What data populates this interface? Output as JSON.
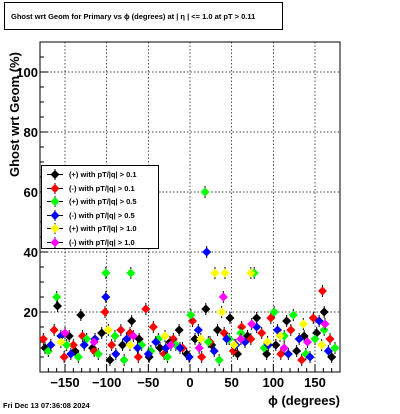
{
  "chart_data": {
    "type": "scatter",
    "title": "Ghost wrt Geom for Primary vs ϕ (degrees) at | η | <= 1.0 at pT > 0.11",
    "xlabel": "ϕ (degrees)",
    "ylabel": "Ghost wrt Geom (%)",
    "xlim": [
      -180,
      180
    ],
    "ylim": [
      0,
      110
    ],
    "xticks": [
      -150,
      -100,
      -50,
      0,
      50,
      100,
      150
    ],
    "yticks": [
      20,
      40,
      60,
      80,
      100
    ],
    "grid": true,
    "legend_position": "middle-left",
    "footer": "Fri Dec 13 07:36:08 2024",
    "series": [
      {
        "name": "(+) with pT/|q| > 0.1",
        "color": "#000000",
        "points": [
          [
            -174,
            8
          ],
          [
            -159,
            22
          ],
          [
            -145,
            12
          ],
          [
            -138,
            7
          ],
          [
            -131,
            19
          ],
          [
            -117,
            8
          ],
          [
            -106,
            13
          ],
          [
            -96,
            4
          ],
          [
            -81,
            9
          ],
          [
            -70,
            17
          ],
          [
            -61,
            11
          ],
          [
            -49,
            5
          ],
          [
            -36,
            8
          ],
          [
            -24,
            10
          ],
          [
            -13,
            14
          ],
          [
            -4,
            6
          ],
          [
            6,
            11
          ],
          [
            19,
            21
          ],
          [
            26,
            9
          ],
          [
            33,
            14
          ],
          [
            48,
            18
          ],
          [
            57,
            6
          ],
          [
            69,
            12
          ],
          [
            80,
            18
          ],
          [
            92,
            6
          ],
          [
            103,
            9
          ],
          [
            116,
            17
          ],
          [
            128,
            7
          ],
          [
            137,
            12
          ],
          [
            152,
            13
          ],
          [
            161,
            20
          ],
          [
            170,
            5
          ]
        ]
      },
      {
        "name": "(-) with pT/|q| > 0.1",
        "color": "#ff0000",
        "points": [
          [
            -176,
            11
          ],
          [
            -163,
            14
          ],
          [
            -151,
            5
          ],
          [
            -140,
            9
          ],
          [
            -129,
            12
          ],
          [
            -115,
            7
          ],
          [
            -102,
            20
          ],
          [
            -94,
            9
          ],
          [
            -83,
            14
          ],
          [
            -72,
            13
          ],
          [
            -62,
            5
          ],
          [
            -53,
            21
          ],
          [
            -44,
            15
          ],
          [
            -31,
            6
          ],
          [
            -20,
            11
          ],
          [
            -9,
            8
          ],
          [
            3,
            17
          ],
          [
            14,
            5
          ],
          [
            24,
            10
          ],
          [
            41,
            13
          ],
          [
            52,
            7
          ],
          [
            62,
            15
          ],
          [
            73,
            11
          ],
          [
            86,
            13
          ],
          [
            97,
            18
          ],
          [
            109,
            6
          ],
          [
            121,
            14
          ],
          [
            134,
            4
          ],
          [
            148,
            18
          ],
          [
            159,
            27
          ],
          [
            168,
            11
          ]
        ]
      },
      {
        "name": "(+) with pT/|q| > 0.5",
        "color": "#00ff00",
        "points": [
          [
            -170,
            7
          ],
          [
            -160,
            25
          ],
          [
            -148,
            9
          ],
          [
            -134,
            5
          ],
          [
            -124,
            11
          ],
          [
            -110,
            6
          ],
          [
            -101,
            33
          ],
          [
            -90,
            12
          ],
          [
            -79,
            4
          ],
          [
            -71,
            33
          ],
          [
            -58,
            9
          ],
          [
            -47,
            7
          ],
          [
            -38,
            11
          ],
          [
            -27,
            5
          ],
          [
            -17,
            9
          ],
          [
            1,
            19
          ],
          [
            18,
            60
          ],
          [
            22,
            10
          ],
          [
            35,
            4
          ],
          [
            47,
            11
          ],
          [
            61,
            13
          ],
          [
            77,
            33
          ],
          [
            89,
            8
          ],
          [
            101,
            20
          ],
          [
            113,
            12
          ],
          [
            124,
            19
          ],
          [
            139,
            6
          ],
          [
            150,
            11
          ],
          [
            161,
            14
          ],
          [
            174,
            8
          ]
        ]
      },
      {
        "name": "(-) with pT/|q| > 0.5",
        "color": "#0000ff",
        "points": [
          [
            -167,
            9
          ],
          [
            -155,
            12
          ],
          [
            -143,
            6
          ],
          [
            -127,
            9
          ],
          [
            -114,
            11
          ],
          [
            -101,
            25
          ],
          [
            -89,
            6
          ],
          [
            -76,
            11
          ],
          [
            -63,
            8
          ],
          [
            -50,
            6
          ],
          [
            -41,
            10
          ],
          [
            -29,
            8
          ],
          [
            -12,
            8
          ],
          [
            -1,
            5
          ],
          [
            10,
            14
          ],
          [
            20,
            40
          ],
          [
            29,
            7
          ],
          [
            44,
            11
          ],
          [
            55,
            9
          ],
          [
            66,
            10
          ],
          [
            80,
            15
          ],
          [
            94,
            9
          ],
          [
            105,
            14
          ],
          [
            118,
            6
          ],
          [
            131,
            11
          ],
          [
            144,
            5
          ],
          [
            155,
            17
          ],
          [
            166,
            7
          ]
        ]
      },
      {
        "name": "(+) with pT/|q| > 1.0",
        "color": "#ffff00",
        "points": [
          [
            -155,
            10
          ],
          [
            -98,
            14
          ],
          [
            -72,
            9
          ],
          [
            -30,
            12
          ],
          [
            13,
            11
          ],
          [
            30,
            33
          ],
          [
            38,
            20
          ],
          [
            42,
            33
          ],
          [
            53,
            9
          ],
          [
            73,
            33
          ],
          [
            93,
            10
          ],
          [
            108,
            12
          ],
          [
            136,
            16
          ],
          [
            158,
            9
          ]
        ]
      },
      {
        "name": "(-) with pT/|q| > 1.0",
        "color": "#ff00ff",
        "points": [
          [
            -150,
            13
          ],
          [
            -115,
            10
          ],
          [
            -68,
            12
          ],
          [
            -23,
            9
          ],
          [
            11,
            8
          ],
          [
            40,
            25
          ],
          [
            61,
            11
          ],
          [
            74,
            16
          ],
          [
            113,
            8
          ],
          [
            141,
            10
          ],
          [
            162,
            16
          ]
        ]
      }
    ]
  }
}
